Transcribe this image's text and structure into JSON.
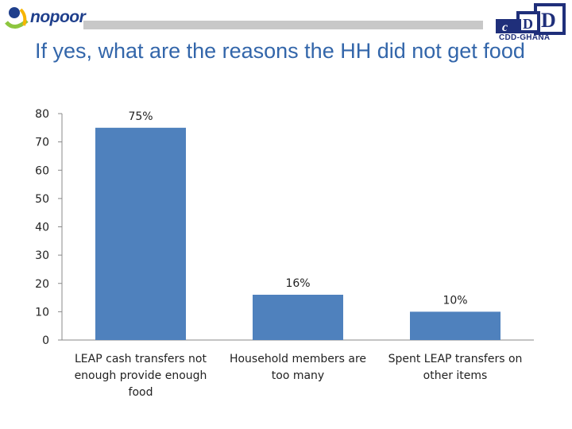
{
  "slide": {
    "title": "If yes, what are the reasons the HH did not get food"
  },
  "logos": {
    "left": {
      "text": "nopoor"
    },
    "right": {
      "text": "CDD-GHANA",
      "mark": "cDD"
    }
  },
  "colors": {
    "bar": "#4f81bd",
    "title": "#3366aa",
    "header_bar": "#c8c8c8"
  },
  "chart_data": {
    "type": "bar",
    "title": "",
    "xlabel": "",
    "ylabel": "",
    "ylim": [
      0,
      80
    ],
    "yticks": [
      0,
      10,
      20,
      30,
      40,
      50,
      60,
      70,
      80
    ],
    "grid": false,
    "legend": "none",
    "categories": [
      [
        "LEAP cash transfers not",
        "enough provide enough",
        "food"
      ],
      [
        "Household members are",
        "too many"
      ],
      [
        "Spent LEAP transfers on",
        "other items"
      ]
    ],
    "values": [
      75,
      16,
      10
    ],
    "data_labels": [
      "75%",
      "16%",
      "10%"
    ]
  }
}
